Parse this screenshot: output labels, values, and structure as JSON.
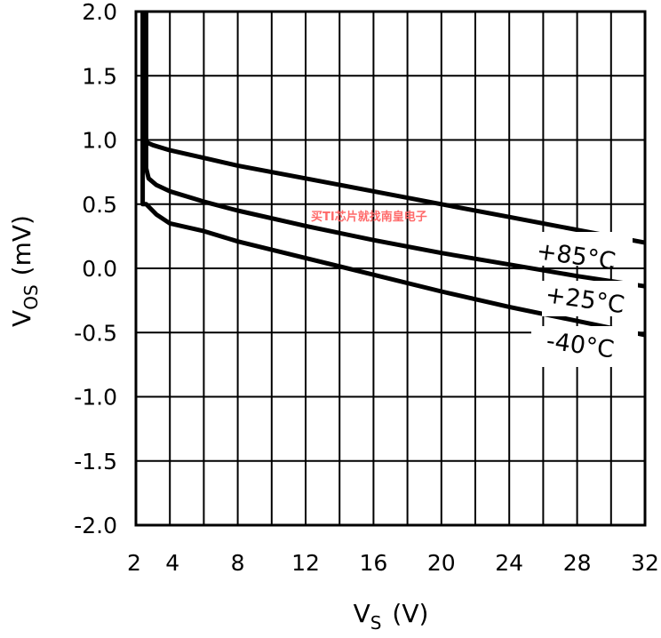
{
  "chart_data": {
    "type": "line",
    "xlabel_main": "V",
    "xlabel_sub": "S",
    "xlabel_unit": "(V)",
    "ylabel_main": "V",
    "ylabel_sub": "OS",
    "ylabel_unit": "(mV)",
    "xlim": [
      2,
      32
    ],
    "ylim": [
      -2.0,
      2.0
    ],
    "x_ticks": [
      2,
      4,
      8,
      12,
      16,
      20,
      24,
      28,
      32
    ],
    "x_tick_labels": [
      "2",
      "4",
      "8",
      "12",
      "16",
      "20",
      "24",
      "28",
      "32"
    ],
    "y_ticks": [
      2.0,
      1.5,
      1.0,
      0.5,
      0.0,
      -0.5,
      -1.0,
      -1.5,
      -2.0
    ],
    "y_tick_labels": [
      "2.0",
      "1.5",
      "1.0",
      "0.5",
      "0.0",
      "-0.5",
      "-1.0",
      "-1.5",
      "-2.0"
    ],
    "x_grid": [
      2,
      4,
      6,
      8,
      10,
      12,
      14,
      16,
      18,
      20,
      22,
      24,
      26,
      28,
      30,
      32
    ],
    "y_grid": [
      2.0,
      1.5,
      1.0,
      0.5,
      0.0,
      -0.5,
      -1.0,
      -1.5,
      -2.0
    ],
    "grid": true,
    "series": [
      {
        "name": "+85°C",
        "x": [
          2.5,
          2.5,
          2.65,
          3.0,
          4,
          6,
          8,
          12,
          16,
          20,
          24,
          28,
          32
        ],
        "y": [
          2.0,
          1.0,
          0.98,
          0.96,
          0.92,
          0.86,
          0.8,
          0.7,
          0.6,
          0.5,
          0.4,
          0.3,
          0.2
        ]
      },
      {
        "name": "+25°C",
        "x": [
          2.6,
          2.6,
          2.75,
          3.2,
          4,
          6,
          8,
          12,
          16,
          20,
          24,
          28,
          32
        ],
        "y": [
          2.0,
          0.78,
          0.7,
          0.65,
          0.6,
          0.52,
          0.45,
          0.33,
          0.22,
          0.12,
          0.03,
          -0.06,
          -0.14
        ]
      },
      {
        "name": "-40°C",
        "x": [
          2.4,
          2.4,
          2.6,
          3.2,
          4,
          6,
          8,
          12,
          16,
          20,
          24,
          28,
          32
        ],
        "y": [
          2.0,
          0.5,
          0.5,
          0.42,
          0.35,
          0.29,
          0.21,
          0.08,
          -0.05,
          -0.18,
          -0.3,
          -0.41,
          -0.52
        ]
      }
    ],
    "annotations": [
      "+85°C",
      "+25°C",
      "-40°C"
    ]
  },
  "watermark": "买TI芯片就找南皇电子"
}
